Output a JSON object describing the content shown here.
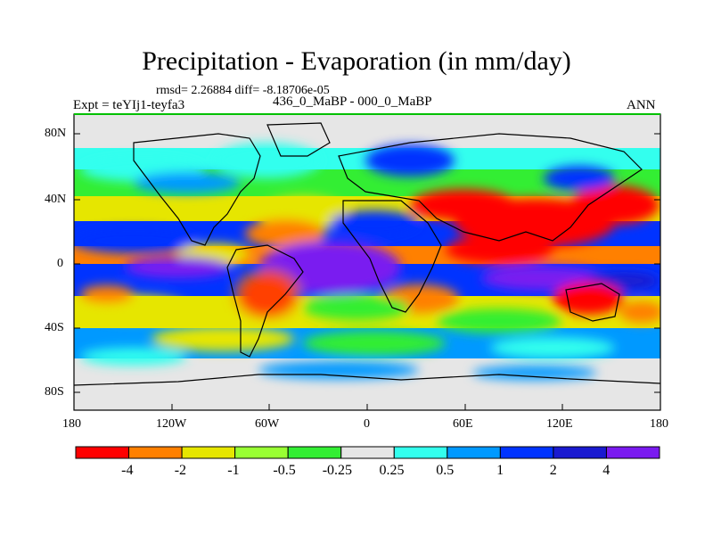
{
  "title": "Precipitation - Evaporation (in mm/day)",
  "stats_line": "rmsd= 2.26884 diff= -8.18706e-05",
  "experiment": "Expt = teYIj1-teyfa3",
  "period": "436_0_MaBP - 000_0_MaBP",
  "season": "ANN",
  "lat_ticks": [
    "80N",
    "40N",
    "0",
    "40S",
    "80S"
  ],
  "lon_ticks": [
    "180",
    "120W",
    "60W",
    "0",
    "60E",
    "120E",
    "180"
  ],
  "colorbar": {
    "labels": [
      "-4",
      "-2",
      "-1",
      "-0.5",
      "-0.25",
      "0.25",
      "0.5",
      "1",
      "2",
      "4"
    ],
    "colors": [
      "#ff0000",
      "#ff8000",
      "#e6e600",
      "#99ff33",
      "#33ee33",
      "#e6e6e6",
      "#33ffee",
      "#0099ff",
      "#0033ff",
      "#1a1ad0",
      "#7a1af0"
    ]
  },
  "land_color": "#e0e0e0",
  "border_color": "#00c000"
}
